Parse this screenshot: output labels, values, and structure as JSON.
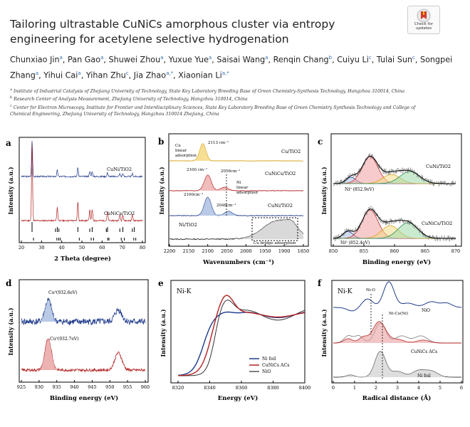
{
  "title": "Tailoring ultrastable CuNiCs amorphous cluster via entropy engineering for acetylene selective hydrogenation",
  "badge": {
    "line1": "Check for",
    "line2": "updates"
  },
  "authors": [
    {
      "name": "Chunxiao Jin",
      "sup": "a"
    },
    {
      "name": "Pan Gao",
      "sup": "a"
    },
    {
      "name": "Shuwei Zhou",
      "sup": "a"
    },
    {
      "name": "Yuxue Yue",
      "sup": "a"
    },
    {
      "name": "Saisai Wang",
      "sup": "a"
    },
    {
      "name": "Renqin Chang",
      "sup": "b"
    },
    {
      "name": "Cuiyu Li",
      "sup": "c"
    },
    {
      "name": "Tulai Sun",
      "sup": "c"
    },
    {
      "name": "Songpei Zhang",
      "sup": "a"
    },
    {
      "name": "Yihui Cai",
      "sup": "a"
    },
    {
      "name": "Yihan Zhu",
      "sup": "c"
    },
    {
      "name": "Jia Zhao",
      "sup": "a,*"
    },
    {
      "name": "Xiaonian Li",
      "sup": "a,*"
    }
  ],
  "affiliations": [
    {
      "sup": "a",
      "text": "Institute of Industrial Catalysis of Zhejiang University of Technology, State Key Laboratory Breeding Base of Green Chemistry-Synthesis Technology, Hangzhou 310014, China"
    },
    {
      "sup": "b",
      "text": "Research Center of Analysis Measurement, Zhejiang University of Technology, Hangzhou 310014, China"
    },
    {
      "sup": "c",
      "text": "Center for Electron Microscopy, Institute for Frontier and Interdisciplinary Sciences, State Key Laboratory Breeding Base of Green Chemistry Synthesis Technology and College of Chemical Engineering, Zhejiang University of Technology, Hangzhou 310014 Zhejiang, China"
    }
  ],
  "figure": {
    "a": {
      "letter": "a",
      "ylabel": "Intensity (a.u.)",
      "xlabel": "2 Theta (degree)",
      "ticks": [
        "20",
        "30",
        "40",
        "50",
        "60",
        "70",
        "80"
      ],
      "series": [
        "CuNi/TiO2",
        "CuNiCs/TiO2"
      ]
    },
    "b": {
      "letter": "b",
      "ylabel": "Intensity (a.u.)",
      "xlabel": "Wavenumbers (cm⁻¹)",
      "ticks": [
        "2200",
        "2150",
        "2100",
        "2050",
        "2000",
        "1950",
        "1900",
        "1850"
      ],
      "peaks": [
        "2113 cm⁻¹",
        "2100 cm⁻¹",
        "2056cm⁻¹",
        "2100cm⁻¹",
        "2046cm⁻¹"
      ],
      "cu_label": [
        "Cu",
        "linear",
        "adsorption"
      ],
      "ni_label": [
        "Ni",
        "linear",
        "adsorption"
      ],
      "bridge": "Cu bridge adsorption",
      "series": [
        "Cu/TiO2",
        "CuNiCs/TiO2",
        "CuNi/TiO2",
        "Ni/TiO2"
      ]
    },
    "c": {
      "letter": "c",
      "ylabel": "Intensity (a.u.)",
      "xlabel": "Binding energy (eV)",
      "ticks": [
        "850",
        "855",
        "860",
        "865",
        "870"
      ],
      "series": [
        "CuNi/TiO2",
        "CuNiCs/TiO2"
      ],
      "peaks": [
        "Ni⁰ (852.9eV)",
        "Ni⁰ (852.4eV)"
      ]
    },
    "d": {
      "letter": "d",
      "ylabel": "Intensity (a.u.)",
      "xlabel": "Binding energy (eV)",
      "ticks": [
        "925",
        "930",
        "935",
        "940",
        "945",
        "950",
        "955",
        "960"
      ],
      "peaks": [
        "Cu⁰(932.6eV)",
        "Cu⁰(932.7eV)"
      ]
    },
    "e": {
      "letter": "e",
      "title": "Ni-K",
      "ylabel": "Intensity (a.u.)",
      "xlabel": "Energy (eV)",
      "ticks": [
        "8320",
        "8340",
        "8360",
        "8380",
        "8400"
      ],
      "legend": [
        "Ni foil",
        "CuNiCs ACs",
        "NiO"
      ]
    },
    "f": {
      "letter": "f",
      "title": "Ni-K",
      "ylabel": "Intensity (a.u.)",
      "xlabel": "Radical distance (Å)",
      "ticks": [
        "0",
        "1",
        "2",
        "3",
        "4",
        "5",
        "6"
      ],
      "labels": [
        "Ni-O",
        "Ni-Cu(Ni)",
        "NiO",
        "CuNiCs ACs",
        "Ni foil"
      ]
    }
  }
}
